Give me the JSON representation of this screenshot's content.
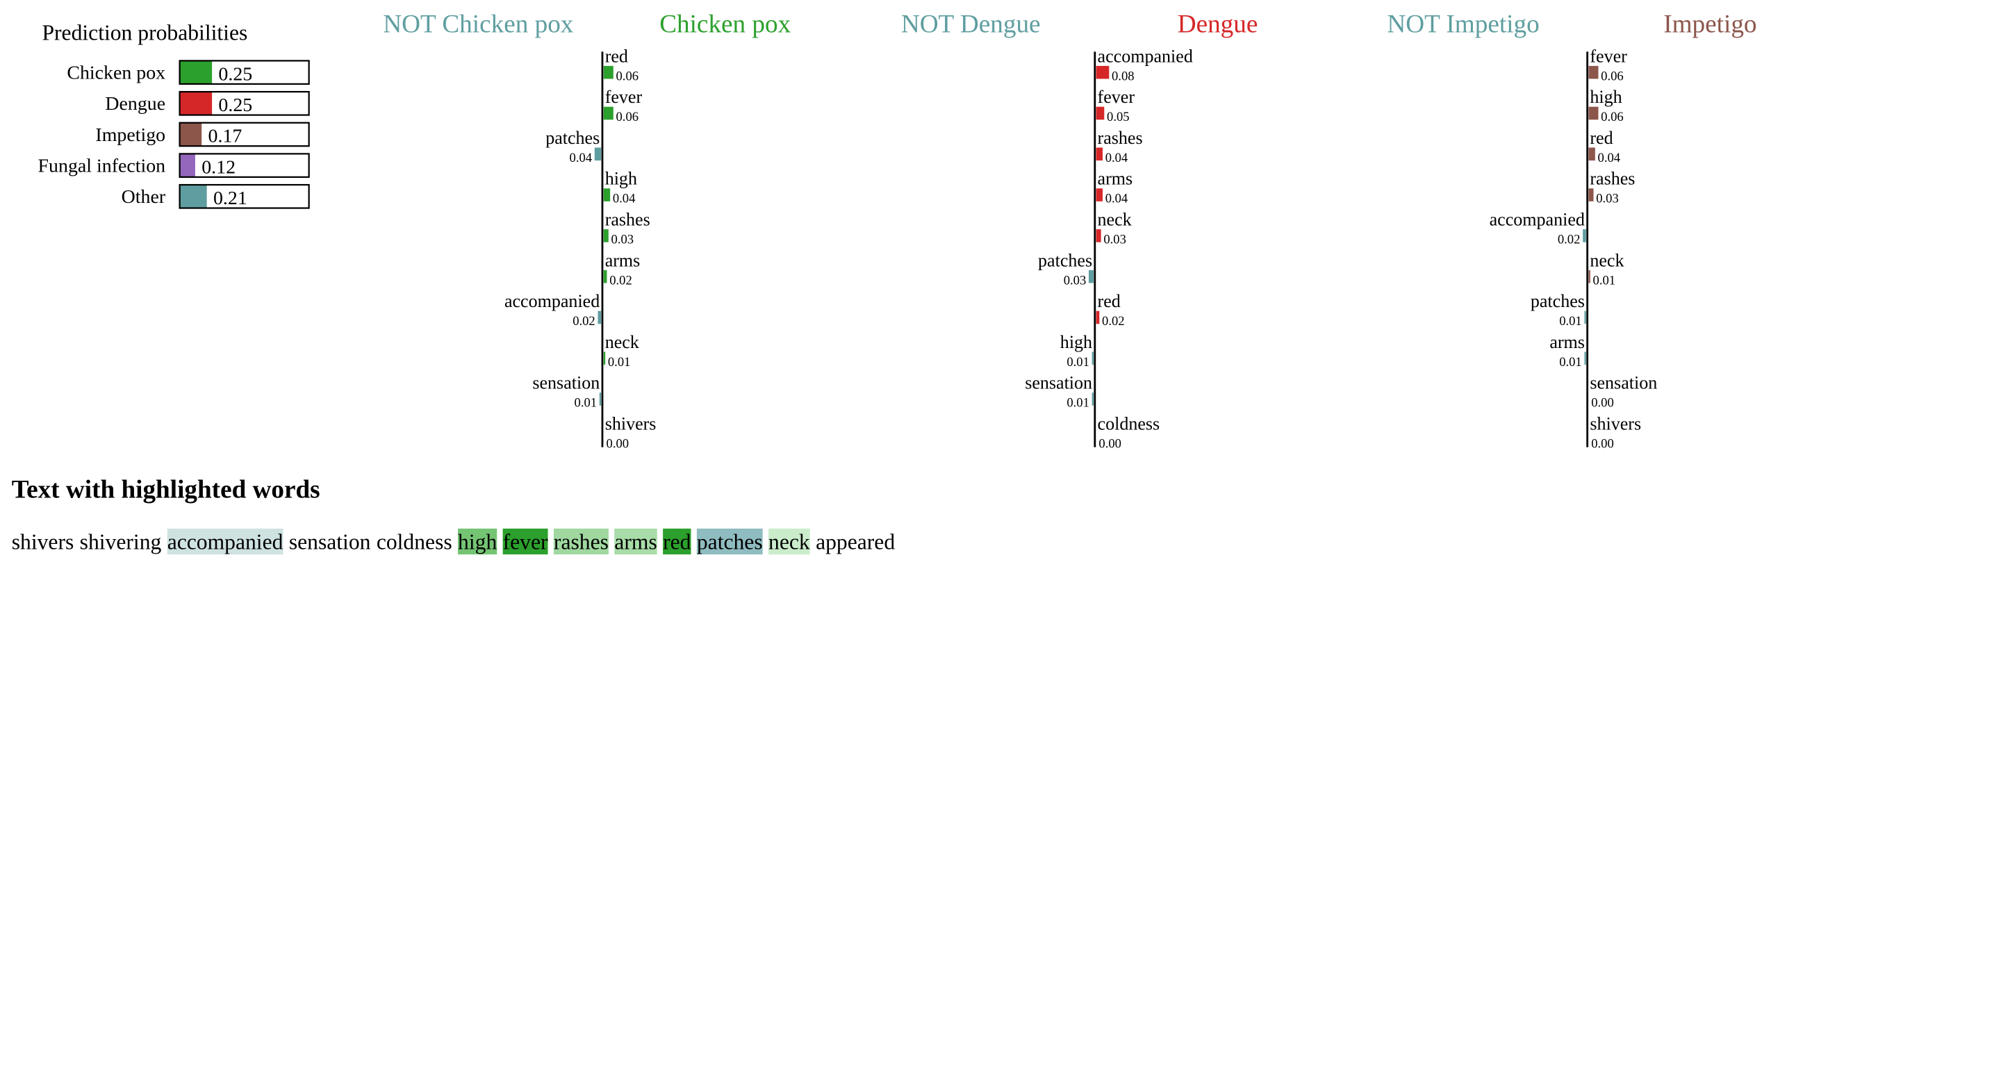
{
  "probabilities": {
    "title": "Prediction probabilities",
    "items": [
      {
        "label": "Chicken pox",
        "value": 0.25,
        "display": "0.25",
        "color": "#2ca02c"
      },
      {
        "label": "Dengue",
        "value": 0.25,
        "display": "0.25",
        "color": "#d62728"
      },
      {
        "label": "Impetigo",
        "value": 0.17,
        "display": "0.17",
        "color": "#8c564b"
      },
      {
        "label": "Fungal infection",
        "value": 0.12,
        "display": "0.12",
        "color": "#9467bd"
      },
      {
        "label": "Other",
        "value": 0.21,
        "display": "0.21",
        "color": "#5f9ea0"
      }
    ]
  },
  "chart_data": [
    {
      "type": "bar",
      "neg_title": "NOT Chicken pox",
      "pos_title": "Chicken pox",
      "pos_color": "#2ca02c",
      "neg_color": "#5f9ea0",
      "features": [
        {
          "word": "red",
          "weight": 0.06,
          "label": "0.06"
        },
        {
          "word": "fever",
          "weight": 0.06,
          "label": "0.06"
        },
        {
          "word": "patches",
          "weight": -0.04,
          "label": "0.04"
        },
        {
          "word": "high",
          "weight": 0.04,
          "label": "0.04"
        },
        {
          "word": "rashes",
          "weight": 0.03,
          "label": "0.03"
        },
        {
          "word": "arms",
          "weight": 0.02,
          "label": "0.02"
        },
        {
          "word": "accompanied",
          "weight": -0.02,
          "label": "0.02"
        },
        {
          "word": "neck",
          "weight": 0.01,
          "label": "0.01"
        },
        {
          "word": "sensation",
          "weight": -0.01,
          "label": "0.01"
        },
        {
          "word": "shivers",
          "weight": 0.0,
          "label": "0.00"
        }
      ]
    },
    {
      "type": "bar",
      "neg_title": "NOT Dengue",
      "pos_title": "Dengue",
      "pos_color": "#d62728",
      "neg_color": "#5f9ea0",
      "features": [
        {
          "word": "accompanied",
          "weight": 0.08,
          "label": "0.08"
        },
        {
          "word": "fever",
          "weight": 0.05,
          "label": "0.05"
        },
        {
          "word": "rashes",
          "weight": 0.04,
          "label": "0.04"
        },
        {
          "word": "arms",
          "weight": 0.04,
          "label": "0.04"
        },
        {
          "word": "neck",
          "weight": 0.03,
          "label": "0.03"
        },
        {
          "word": "patches",
          "weight": -0.03,
          "label": "0.03"
        },
        {
          "word": "red",
          "weight": 0.02,
          "label": "0.02"
        },
        {
          "word": "high",
          "weight": -0.01,
          "label": "0.01"
        },
        {
          "word": "sensation",
          "weight": -0.01,
          "label": "0.01"
        },
        {
          "word": "coldness",
          "weight": 0.0,
          "label": "0.00"
        }
      ]
    },
    {
      "type": "bar",
      "neg_title": "NOT Impetigo",
      "pos_title": "Impetigo",
      "pos_color": "#8c564b",
      "neg_color": "#5f9ea0",
      "features": [
        {
          "word": "fever",
          "weight": 0.06,
          "label": "0.06"
        },
        {
          "word": "high",
          "weight": 0.06,
          "label": "0.06"
        },
        {
          "word": "red",
          "weight": 0.04,
          "label": "0.04"
        },
        {
          "word": "rashes",
          "weight": 0.03,
          "label": "0.03"
        },
        {
          "word": "accompanied",
          "weight": -0.02,
          "label": "0.02"
        },
        {
          "word": "neck",
          "weight": 0.01,
          "label": "0.01"
        },
        {
          "word": "patches",
          "weight": -0.01,
          "label": "0.01"
        },
        {
          "word": "arms",
          "weight": -0.01,
          "label": "0.01"
        },
        {
          "word": "sensation",
          "weight": 0.0,
          "label": "0.00"
        },
        {
          "word": "shivers",
          "weight": 0.0,
          "label": "0.00"
        }
      ]
    }
  ],
  "highlighted_text": {
    "title": "Text with highlighted words",
    "words": [
      {
        "text": "shivers",
        "bg": null
      },
      {
        "text": "shivering",
        "bg": null
      },
      {
        "text": "accompanied",
        "bg": "#cfe2e2"
      },
      {
        "text": "sensation",
        "bg": null
      },
      {
        "text": "coldness",
        "bg": null
      },
      {
        "text": "high",
        "bg": "#74c474"
      },
      {
        "text": "fever",
        "bg": "#2ca02c"
      },
      {
        "text": "rashes",
        "bg": "#a0d8a0"
      },
      {
        "text": "arms",
        "bg": "#a8dca8"
      },
      {
        "text": "red",
        "bg": "#2ca02c"
      },
      {
        "text": "patches",
        "bg": "#8fbcc0"
      },
      {
        "text": "neck",
        "bg": "#cbeccb"
      },
      {
        "text": "appeared",
        "bg": null
      }
    ]
  }
}
